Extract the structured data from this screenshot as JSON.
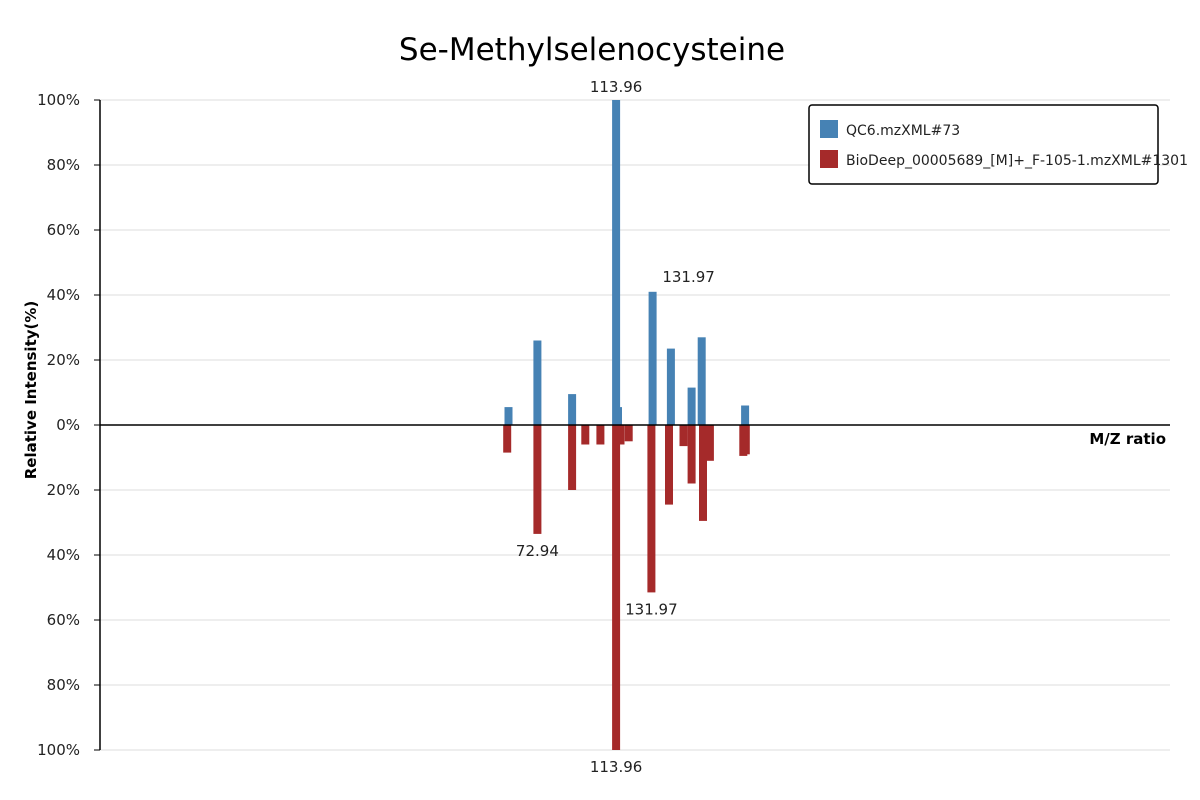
{
  "chart_data": {
    "type": "bar",
    "title": "Se-Methylselenocysteine",
    "xlabel": "M/Z ratio",
    "ylabel": "Relative Intensity(%)",
    "y_ticks_top": [
      "100%",
      "80%",
      "60%",
      "40%",
      "20%",
      "0%"
    ],
    "y_ticks_bottom": [
      "20%",
      "40%",
      "60%",
      "80%",
      "100%"
    ],
    "ylim": [
      -100,
      100
    ],
    "xlim": [
      0,
      170
    ],
    "grid": true,
    "legend_position": "top-right",
    "colors": {
      "query": "#4682b4",
      "reference": "#a52a2a"
    },
    "series": [
      {
        "name": "QC6.mzXML#73",
        "direction": "up",
        "x": [
          64.9,
          69.5,
          75.0,
          82.0,
          82.3,
          87.8,
          90.7,
          94.0,
          95.6,
          102.5
        ],
        "values": [
          5.5,
          26,
          9.5,
          100,
          5.5,
          41,
          23.5,
          11.5,
          27,
          6
        ]
      },
      {
        "name": "BioDeep_00005689_[M]+_F-105-1.mzXML#1301",
        "direction": "down",
        "x": [
          64.7,
          69.5,
          75.0,
          77.1,
          79.5,
          82.0,
          82.7,
          84.0,
          87.6,
          90.4,
          92.7,
          94.0,
          95.8,
          96.9,
          102.2,
          102.6
        ],
        "values": [
          8.5,
          33.5,
          20,
          6,
          6,
          100,
          6,
          5,
          51.5,
          24.5,
          6.5,
          18,
          29.5,
          11,
          9.5,
          9
        ]
      }
    ],
    "annotations": [
      {
        "text": "113.96",
        "series": 0,
        "index": 3
      },
      {
        "text": "131.97",
        "series": 0,
        "index": 5
      },
      {
        "text": "72.94",
        "series": 1,
        "index": 1
      },
      {
        "text": "131.97",
        "series": 1,
        "index": 8
      },
      {
        "text": "113.96",
        "series": 1,
        "index": 5
      }
    ]
  }
}
